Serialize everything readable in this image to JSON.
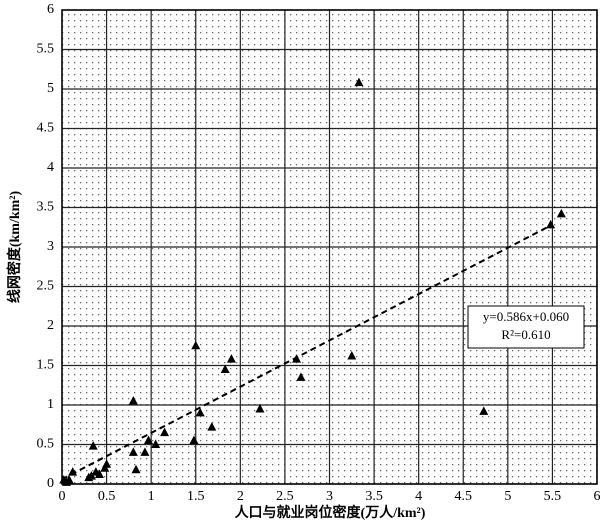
{
  "chart_data": {
    "type": "scatter",
    "x_label": "人口与就业岗位密度(万人/km²)",
    "y_label": "线网密度(km/km²)",
    "x": [
      0.02,
      0.05,
      0.08,
      0.12,
      0.3,
      0.33,
      0.35,
      0.38,
      0.42,
      0.48,
      0.5,
      0.8,
      0.8,
      0.83,
      0.93,
      0.97,
      1.05,
      1.15,
      1.48,
      1.5,
      1.55,
      1.68,
      1.83,
      1.9,
      2.22,
      2.63,
      2.68,
      3.25,
      3.33,
      4.73,
      5.48,
      5.6
    ],
    "values": [
      0.05,
      0.02,
      0.05,
      0.15,
      0.08,
      0.1,
      0.48,
      0.15,
      0.12,
      0.2,
      0.25,
      0.4,
      1.05,
      0.18,
      0.4,
      0.55,
      0.5,
      0.65,
      0.55,
      1.75,
      0.9,
      0.72,
      1.45,
      1.58,
      0.95,
      1.58,
      1.35,
      1.62,
      5.08,
      0.92,
      3.28,
      3.42
    ],
    "color": "#000000",
    "marker": "triangle",
    "trendline": {
      "slope": 0.586,
      "intercept": 0.06,
      "x": [
        0,
        5.5
      ]
    },
    "annotations": [
      "y=0.586x+0.060",
      "R²=0.610"
    ],
    "xlim": [
      0,
      6
    ],
    "ylim": [
      0,
      6
    ],
    "xticks": [
      0,
      0.5,
      1,
      1.5,
      2,
      2.5,
      3,
      3.5,
      4,
      4.5,
      5,
      5.5,
      6
    ],
    "yticks": [
      0,
      0.5,
      1,
      1.5,
      2,
      2.5,
      3,
      3.5,
      4,
      4.5,
      5,
      5.5,
      6
    ],
    "grid": true
  }
}
